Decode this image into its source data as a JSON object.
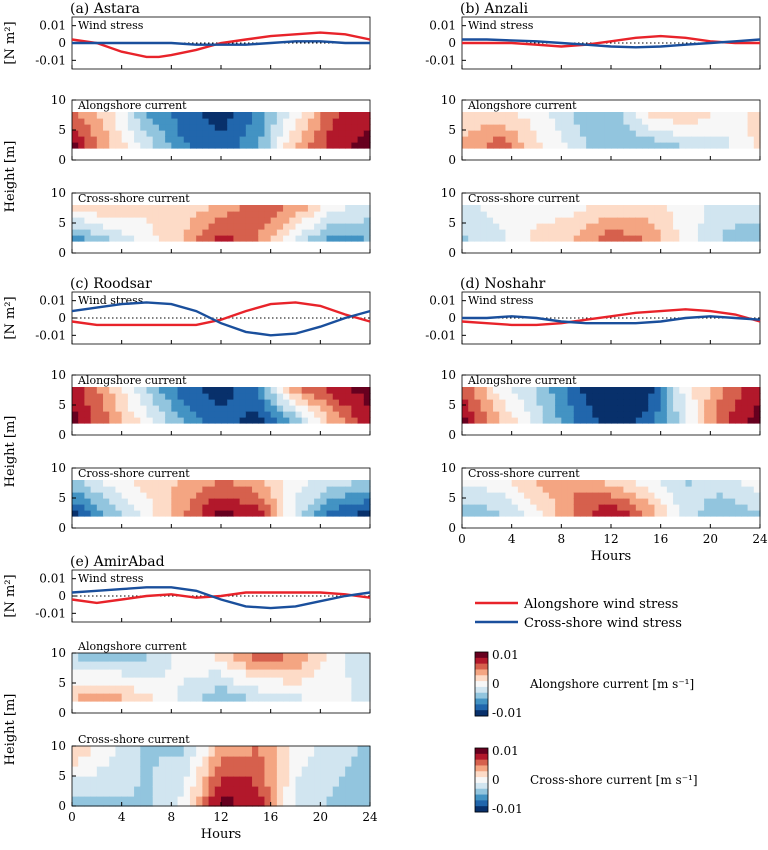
{
  "labels": {
    "wind_stress": "Wind stress",
    "alongshore_current": "Alongshore current",
    "cross_shore_current": "Cross-shore current",
    "y_wind": "[N m²]",
    "y_height": "Height [m]",
    "x_label": "Hours"
  },
  "legend": {
    "alongshore": {
      "label": "Alongshore wind stress",
      "color": "#e8232a"
    },
    "cross_shore": {
      "label": "Cross-shore wind stress",
      "color": "#1a4f9c"
    }
  },
  "colorbars": [
    {
      "label": "Alongshore current [m s⁻¹]",
      "ticks": [
        "0.01",
        "0",
        "-0.01"
      ]
    },
    {
      "label": "Cross-shore current [m s⁻¹]",
      "ticks": [
        "0.01",
        "0",
        "-0.01"
      ]
    }
  ],
  "colors": {
    "diverging": [
      "#08306b",
      "#2166ac",
      "#4393c3",
      "#92c5de",
      "#d1e5f0",
      "#f7f7f7",
      "#fddbc7",
      "#f4a582",
      "#d6604d",
      "#b2182b",
      "#67001f"
    ]
  },
  "chart_data": [
    {
      "panel": "(a) Astara",
      "type": "line",
      "x_ticks": [
        "0",
        "4",
        "8",
        "12",
        "16",
        "20",
        "24"
      ],
      "wind_ylim": [
        -0.015,
        0.015
      ],
      "wind_yticks": [
        "0.01",
        "0",
        "-0.01"
      ],
      "height_yticks": [
        "10",
        "5",
        "0"
      ],
      "height_ylim": [
        0,
        10
      ],
      "alongshore_stress": {
        "x": [
          0,
          2,
          4,
          6,
          7,
          8,
          10,
          12,
          14,
          16,
          18,
          20,
          22,
          24
        ],
        "y": [
          0.002,
          0.0,
          -0.005,
          -0.008,
          -0.008,
          -0.007,
          -0.004,
          0.0,
          0.002,
          0.004,
          0.005,
          0.006,
          0.005,
          0.002
        ]
      },
      "cross_shore_stress": {
        "x": [
          0,
          2,
          4,
          6,
          8,
          10,
          12,
          14,
          16,
          18,
          20,
          22,
          24
        ],
        "y": [
          0.0,
          0.0,
          0.0,
          0.0,
          0.0,
          -0.001,
          -0.001,
          -0.001,
          0.0,
          0.001,
          0.001,
          0.0,
          0.0
        ]
      },
      "alongshore_current": {
        "hours": [
          0,
          3,
          6,
          9,
          12,
          15,
          18,
          21,
          24
        ],
        "z_range": [
          2,
          8
        ],
        "values_low": [
          0.012,
          0.004,
          -0.002,
          -0.008,
          -0.01,
          -0.006,
          0.004,
          0.01,
          0.012
        ],
        "values_high": [
          0.006,
          0.002,
          -0.006,
          -0.01,
          -0.012,
          -0.008,
          0.0,
          0.008,
          0.01
        ]
      },
      "cross_shore_current": {
        "hours": [
          0,
          3,
          6,
          9,
          12,
          15,
          18,
          21,
          24
        ],
        "z_range": [
          2,
          8
        ],
        "values_low": [
          -0.008,
          -0.004,
          0.0,
          0.004,
          0.01,
          0.006,
          -0.002,
          -0.008,
          -0.006
        ],
        "values_high": [
          0.002,
          0.004,
          0.002,
          0.002,
          0.004,
          0.008,
          0.006,
          0.0,
          -0.002
        ]
      }
    },
    {
      "panel": "(b) Anzali",
      "type": "line",
      "x_ticks": [
        "0",
        "4",
        "8",
        "12",
        "16",
        "20",
        "24"
      ],
      "wind_ylim": [
        -0.015,
        0.015
      ],
      "wind_yticks": [
        "0.01",
        "0",
        "-0.01"
      ],
      "height_yticks": [
        "10",
        "5",
        "0"
      ],
      "height_ylim": [
        0,
        10
      ],
      "alongshore_stress": {
        "x": [
          0,
          2,
          4,
          6,
          8,
          10,
          12,
          14,
          16,
          18,
          20,
          22,
          24
        ],
        "y": [
          0.0,
          0.0,
          0.0,
          -0.001,
          -0.002,
          -0.001,
          0.001,
          0.003,
          0.004,
          0.003,
          0.001,
          0.0,
          0.0
        ]
      },
      "cross_shore_stress": {
        "x": [
          0,
          2,
          4,
          6,
          8,
          10,
          12,
          14,
          16,
          18,
          20,
          22,
          24
        ],
        "y": [
          0.002,
          0.002,
          0.0015,
          0.001,
          0.0,
          -0.001,
          -0.002,
          -0.0025,
          -0.002,
          -0.001,
          0.0,
          0.001,
          0.002
        ]
      },
      "alongshore_current": {
        "hours": [
          0,
          3,
          6,
          9,
          12,
          15,
          18,
          21,
          24
        ],
        "z_range": [
          2,
          8
        ],
        "values_low": [
          0.004,
          0.008,
          0.002,
          -0.002,
          -0.006,
          -0.006,
          -0.004,
          -0.002,
          0.002
        ],
        "values_high": [
          0.002,
          0.002,
          0.0,
          -0.004,
          -0.006,
          0.002,
          0.004,
          0.0,
          0.002
        ]
      },
      "cross_shore_current": {
        "hours": [
          0,
          3,
          6,
          9,
          12,
          15,
          18,
          21,
          24
        ],
        "z_range": [
          2,
          8
        ],
        "values_low": [
          -0.004,
          -0.002,
          0.002,
          0.004,
          0.008,
          0.006,
          0.0,
          -0.004,
          -0.006
        ],
        "values_high": [
          -0.002,
          0.0,
          0.0,
          0.0,
          0.002,
          0.002,
          0.0,
          -0.002,
          -0.002
        ]
      }
    },
    {
      "panel": "(c) Roodsar",
      "type": "line",
      "x_ticks": [
        "0",
        "4",
        "8",
        "12",
        "16",
        "20",
        "24"
      ],
      "wind_ylim": [
        -0.015,
        0.015
      ],
      "wind_yticks": [
        "0.01",
        "0",
        "-0.01"
      ],
      "height_yticks": [
        "10",
        "5",
        "0"
      ],
      "height_ylim": [
        0,
        10
      ],
      "alongshore_stress": {
        "x": [
          0,
          2,
          4,
          6,
          8,
          10,
          12,
          14,
          16,
          18,
          20,
          22,
          24
        ],
        "y": [
          -0.002,
          -0.004,
          -0.004,
          -0.004,
          -0.004,
          -0.004,
          -0.001,
          0.004,
          0.008,
          0.009,
          0.007,
          0.002,
          -0.002
        ]
      },
      "cross_shore_stress": {
        "x": [
          0,
          2,
          4,
          6,
          8,
          10,
          12,
          14,
          16,
          18,
          20,
          22,
          24
        ],
        "y": [
          0.004,
          0.006,
          0.008,
          0.009,
          0.008,
          0.004,
          -0.003,
          -0.008,
          -0.01,
          -0.009,
          -0.005,
          0.0,
          0.004
        ]
      },
      "alongshore_current": {
        "hours": [
          0,
          3,
          6,
          9,
          12,
          15,
          18,
          21,
          24
        ],
        "z_range": [
          2,
          8
        ],
        "values_low": [
          0.012,
          0.006,
          0.0,
          -0.006,
          -0.01,
          -0.012,
          -0.006,
          0.004,
          0.01
        ],
        "values_high": [
          0.01,
          0.004,
          -0.004,
          -0.01,
          -0.012,
          -0.008,
          0.006,
          0.01,
          0.012
        ]
      },
      "cross_shore_current": {
        "hours": [
          0,
          3,
          6,
          9,
          12,
          15,
          18,
          21,
          24
        ],
        "z_range": [
          2,
          8
        ],
        "values_low": [
          -0.012,
          -0.006,
          0.0,
          0.006,
          0.012,
          0.01,
          -0.002,
          -0.01,
          -0.012
        ],
        "values_high": [
          -0.004,
          0.0,
          0.002,
          0.004,
          0.006,
          0.004,
          0.0,
          -0.002,
          -0.004
        ]
      }
    },
    {
      "panel": "(d) Noshahr",
      "type": "line",
      "x_ticks": [
        "0",
        "4",
        "8",
        "12",
        "16",
        "20",
        "24"
      ],
      "wind_ylim": [
        -0.015,
        0.015
      ],
      "wind_yticks": [
        "0.01",
        "0",
        "-0.01"
      ],
      "height_yticks": [
        "10",
        "5",
        "0"
      ],
      "height_ylim": [
        0,
        10
      ],
      "alongshore_stress": {
        "x": [
          0,
          2,
          4,
          6,
          8,
          10,
          12,
          14,
          16,
          18,
          20,
          22,
          24
        ],
        "y": [
          -0.002,
          -0.003,
          -0.004,
          -0.004,
          -0.003,
          -0.001,
          0.001,
          0.003,
          0.004,
          0.005,
          0.004,
          0.002,
          -0.002
        ]
      },
      "cross_shore_stress": {
        "x": [
          0,
          2,
          4,
          6,
          8,
          10,
          12,
          14,
          16,
          18,
          20,
          22,
          24
        ],
        "y": [
          0.0,
          0.0,
          0.001,
          0.0,
          -0.002,
          -0.003,
          -0.003,
          -0.003,
          -0.002,
          0.0,
          0.001,
          0.0,
          -0.001
        ]
      },
      "alongshore_current": {
        "hours": [
          0,
          3,
          6,
          9,
          12,
          15,
          18,
          21,
          24
        ],
        "z_range": [
          2,
          8
        ],
        "values_low": [
          0.012,
          0.004,
          -0.002,
          -0.008,
          -0.012,
          -0.01,
          -0.002,
          0.008,
          0.012
        ],
        "values_high": [
          0.008,
          0.0,
          -0.004,
          -0.01,
          -0.014,
          -0.012,
          0.0,
          0.006,
          0.01
        ]
      },
      "cross_shore_current": {
        "hours": [
          0,
          3,
          6,
          9,
          12,
          15,
          18,
          21,
          24
        ],
        "z_range": [
          2,
          8
        ],
        "values_low": [
          -0.006,
          -0.004,
          0.0,
          0.006,
          0.012,
          0.006,
          -0.002,
          -0.006,
          -0.004
        ],
        "values_high": [
          0.0,
          0.0,
          0.004,
          0.006,
          0.002,
          0.0,
          -0.004,
          -0.002,
          0.0
        ]
      }
    },
    {
      "panel": "(e) AmirAbad",
      "type": "line",
      "x_ticks": [
        "0",
        "4",
        "8",
        "12",
        "16",
        "20",
        "24"
      ],
      "wind_ylim": [
        -0.015,
        0.015
      ],
      "wind_yticks": [
        "0.01",
        "0",
        "-0.01"
      ],
      "height_yticks": [
        "10",
        "5",
        "0"
      ],
      "height_ylim": [
        0,
        10
      ],
      "alongshore_stress": {
        "x": [
          0,
          2,
          4,
          6,
          8,
          10,
          12,
          14,
          16,
          18,
          20,
          22,
          24
        ],
        "y": [
          -0.002,
          -0.004,
          -0.002,
          0.0,
          0.001,
          -0.001,
          0.0,
          0.002,
          0.002,
          0.002,
          0.002,
          0.001,
          -0.001
        ]
      },
      "cross_shore_stress": {
        "x": [
          0,
          2,
          4,
          6,
          8,
          10,
          12,
          14,
          16,
          18,
          20,
          22,
          24
        ],
        "y": [
          0.002,
          0.003,
          0.004,
          0.005,
          0.005,
          0.003,
          -0.002,
          -0.006,
          -0.007,
          -0.006,
          -0.003,
          0.0,
          0.002
        ]
      },
      "alongshore_current": {
        "hours": [
          0,
          3,
          6,
          9,
          12,
          15,
          18,
          21,
          24
        ],
        "z_range": [
          2,
          10
        ],
        "values_low": [
          0.004,
          0.006,
          0.002,
          -0.002,
          -0.006,
          -0.004,
          -0.002,
          0.0,
          -0.002
        ],
        "values_high": [
          -0.004,
          -0.006,
          -0.004,
          0.0,
          0.002,
          0.008,
          0.006,
          0.0,
          -0.004
        ]
      },
      "cross_shore_current": {
        "hours": [
          0,
          3,
          6,
          9,
          12,
          15,
          18,
          21,
          24
        ],
        "z_range": [
          0,
          10
        ],
        "values_low": [
          -0.006,
          -0.004,
          -0.004,
          0.0,
          0.012,
          0.01,
          -0.002,
          -0.004,
          -0.006
        ],
        "values_high": [
          0.004,
          0.0,
          -0.004,
          -0.004,
          0.004,
          0.006,
          0.0,
          -0.002,
          -0.004
        ]
      }
    }
  ]
}
